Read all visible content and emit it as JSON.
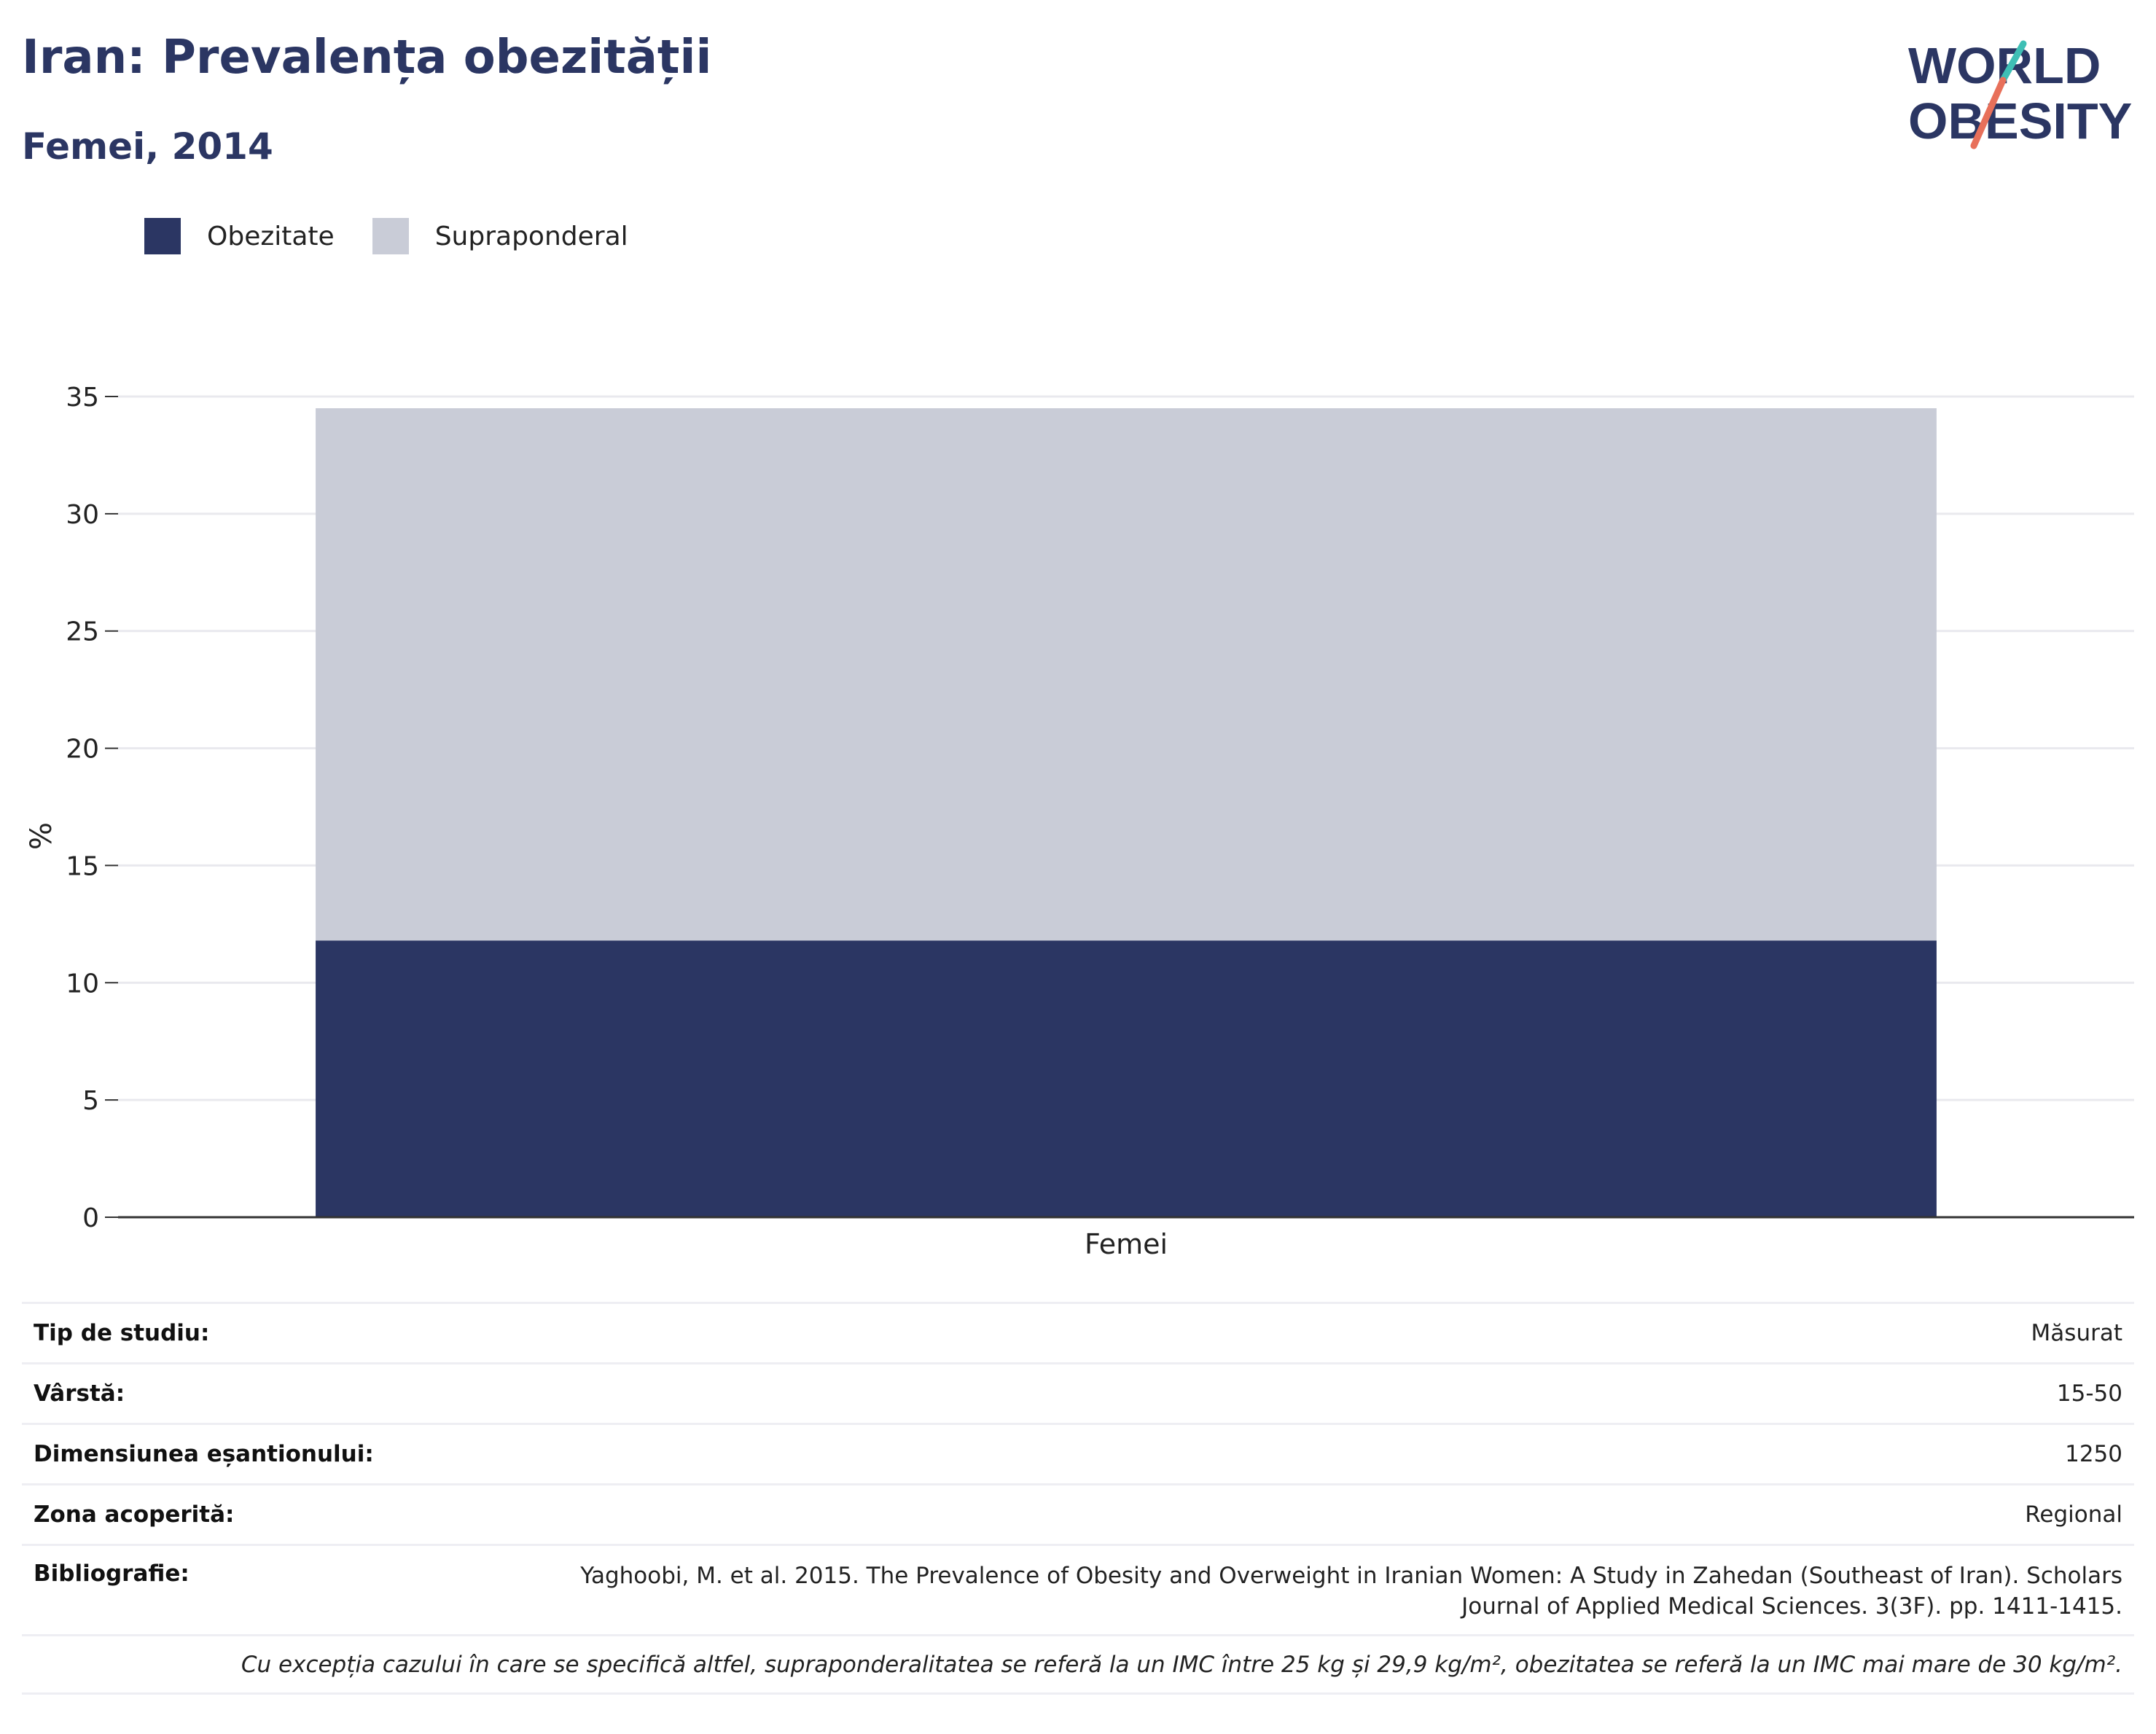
{
  "header": {
    "title": "Iran: Prevalența obezității",
    "subtitle": "Femei, 2014"
  },
  "logo": {
    "line1": "WORLD",
    "line2": "OBESITY",
    "icon": "world-obesity-logo",
    "colors": [
      "#2b3663",
      "#3fbfb5",
      "#e8705a"
    ]
  },
  "legend": [
    {
      "label": "Obezitate",
      "color": "#2b3663"
    },
    {
      "label": "Supraponderal",
      "color": "#c9ccd7"
    }
  ],
  "chart_data": {
    "type": "bar",
    "stacked": true,
    "categories": [
      "Femei"
    ],
    "series": [
      {
        "name": "Obezitate",
        "values": [
          11.8
        ],
        "color": "#2b3663"
      },
      {
        "name": "Supraponderal",
        "values": [
          22.7
        ],
        "color": "#c9ccd7"
      }
    ],
    "ylabel": "%",
    "ylim": [
      0,
      35
    ],
    "yticks": [
      0,
      5,
      10,
      15,
      20,
      25,
      30,
      35
    ],
    "grid": true,
    "legend_position": "top-left"
  },
  "info": {
    "rows": [
      {
        "label": "Tip de studiu:",
        "value": "Măsurat"
      },
      {
        "label": "Vârstă:",
        "value": "15-50"
      },
      {
        "label": "Dimensiunea eșantionului:",
        "value": "1250"
      },
      {
        "label": "Zona acoperită:",
        "value": "Regional"
      }
    ],
    "bibliography_label": "Bibliografie:",
    "bibliography": "Yaghoobi, M. et al. 2015. The Prevalence of Obesity and Overweight in Iranian Women: A Study in Zahedan (Southeast of Iran). Scholars Journal of Applied Medical Sciences. 3(3F). pp. 1411-1415.",
    "note": "Cu excepția cazului în care se specifică altfel, supraponderalitatea se referă la un IMC între 25 kg și 29,9 kg/m², obezitatea se referă la un IMC mai mare de 30 kg/m²."
  }
}
